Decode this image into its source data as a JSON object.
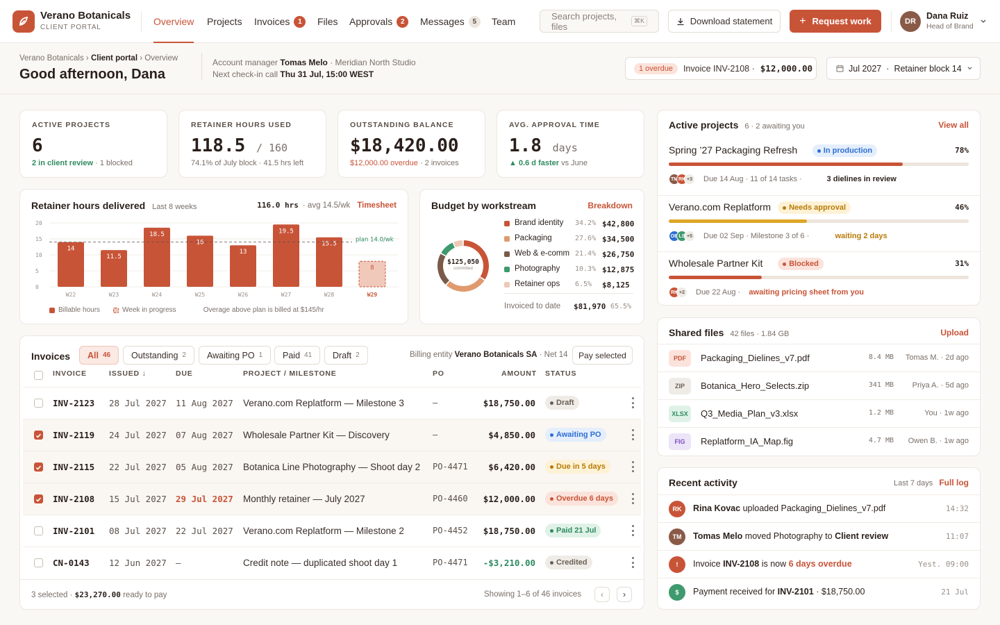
{
  "brand": {
    "name": "Verano Botanicals",
    "subtitle": "CLIENT PORTAL"
  },
  "nav": [
    {
      "label": "Overview"
    },
    {
      "label": "Projects"
    },
    {
      "label": "Invoices",
      "badge": "1"
    },
    {
      "label": "Files"
    },
    {
      "label": "Approvals",
      "badge": "2"
    },
    {
      "label": "Messages",
      "badge": "5"
    },
    {
      "label": "Team"
    }
  ],
  "search": {
    "placeholder": "Search projects, files",
    "shortcut": "⌘K"
  },
  "actions": {
    "download": "Download statement",
    "request": "Request work"
  },
  "user": {
    "initials": "DR",
    "name": "Dana Ruiz",
    "role": "Head of Brand"
  },
  "header": {
    "breadcrumb": [
      "Verano Botanicals",
      "Client portal",
      "Overview"
    ],
    "greeting": "Good afternoon, Dana",
    "account_label": "Account manager",
    "account_manager": "Tomas Melo",
    "studio": "· Meridian North Studio",
    "checkin_label": "Next check-in call",
    "checkin": "Thu 31 Jul, 15:00 WEST",
    "overdue_badge": "1 overdue",
    "overdue_invoice": "Invoice INV-2108 ·",
    "overdue_amount": "$12,000.00",
    "period": "Jul 2027",
    "block": "Retainer block 14"
  },
  "stats": [
    {
      "label": "ACTIVE PROJECTS",
      "value": "6",
      "sub_hl": "2 in client review",
      "sub": "· 1 blocked"
    },
    {
      "label": "RETAINER HOURS USED",
      "value": "118.5",
      "value_suffix": "/ 160",
      "sub": "74.1% of July block · 41.5 hrs left"
    },
    {
      "label": "OUTSTANDING BALANCE",
      "value": "$18,420.00",
      "sub_hl": "$12,000.00 overdue",
      "sub": "· 2 invoices"
    },
    {
      "label": "AVG. APPROVAL TIME",
      "value": "1.8",
      "value_suffix": "days",
      "sub_hl": "▲ 0.6 d faster",
      "sub": "vs June"
    }
  ],
  "hours_chart": {
    "title": "Retainer hours delivered",
    "range": "Last 8 weeks",
    "total": "116.0 hrs",
    "avg": "· avg 14.5/wk",
    "link": "Timesheet",
    "legend_billable": "Billable hours",
    "legend_progress": "Week in progress",
    "note": "Overage above plan is billed at $145/hr",
    "plan_label": "plan 14.0/wk"
  },
  "chart_data": [
    {
      "type": "bar",
      "title": "Retainer hours delivered",
      "categories": [
        "W22",
        "W23",
        "W24",
        "W25",
        "W26",
        "W27",
        "W28",
        "W29"
      ],
      "values": [
        14.0,
        11.5,
        18.5,
        16.0,
        13.0,
        19.5,
        15.5,
        8.0
      ],
      "ylim": [
        0,
        20
      ],
      "yticks": [
        0,
        5,
        10,
        15,
        20
      ],
      "plan": 14.0,
      "in_progress": "W29",
      "grid": true
    },
    {
      "type": "pie",
      "title": "Budget by workstream",
      "center_label": "$125,050",
      "center_sub": "committed",
      "slices": [
        {
          "name": "Brand identity",
          "pct": "34.2%",
          "amount": "$42,800",
          "value": 34.2,
          "color": "#c85438"
        },
        {
          "name": "Packaging",
          "pct": "27.6%",
          "amount": "$34,500",
          "value": 27.6,
          "color": "#e09a6e"
        },
        {
          "name": "Web & e-comm",
          "pct": "21.4%",
          "amount": "$26,750",
          "value": 21.4,
          "color": "#7a5a48"
        },
        {
          "name": "Photography",
          "pct": "10.3%",
          "amount": "$12,875",
          "value": 10.3,
          "color": "#3f9a6e"
        },
        {
          "name": "Retainer ops",
          "pct": "6.5%",
          "amount": "$8,125",
          "value": 6.5,
          "color": "#ecc9b6"
        }
      ]
    }
  ],
  "budget": {
    "title": "Budget by workstream",
    "link": "Breakdown",
    "invoiced_label": "Invoiced to date",
    "invoiced": "$81,970",
    "invoiced_pct": "65.5%"
  },
  "invoices": {
    "title": "Invoices",
    "tabs": [
      {
        "label": "All",
        "count": "46"
      },
      {
        "label": "Outstanding",
        "count": "2"
      },
      {
        "label": "Awaiting PO",
        "count": "1"
      },
      {
        "label": "Paid",
        "count": "41"
      },
      {
        "label": "Draft",
        "count": "2"
      }
    ],
    "billing_label": "Billing entity",
    "billing_entity": "Verano Botanicals SA",
    "terms": "· Net 14",
    "pay_button": "Pay selected",
    "columns": [
      "INVOICE",
      "ISSUED ↓",
      "DUE",
      "PROJECT / MILESTONE",
      "PO",
      "AMOUNT",
      "STATUS"
    ],
    "rows": [
      {
        "id": "INV-2123",
        "issued": "28 Jul 2027",
        "due": "11 Aug 2027",
        "project": "Verano.com Replatform — Milestone 3",
        "po": "—",
        "amount": "$18,750.00",
        "status": "Draft",
        "checked": false
      },
      {
        "id": "INV-2119",
        "issued": "24 Jul 2027",
        "due": "07 Aug 2027",
        "project": "Wholesale Partner Kit — Discovery",
        "po": "—",
        "amount": "$4,850.00",
        "status": "Awaiting PO",
        "checked": true
      },
      {
        "id": "INV-2115",
        "issued": "22 Jul 2027",
        "due": "05 Aug 2027",
        "project": "Botanica Line Photography — Shoot day 2",
        "po": "PO-4471",
        "amount": "$6,420.00",
        "status": "Due in 5 days",
        "checked": true
      },
      {
        "id": "INV-2108",
        "issued": "15 Jul 2027",
        "due": "29 Jul 2027",
        "project": "Monthly retainer — July 2027",
        "po": "PO-4460",
        "amount": "$12,000.00",
        "status": "Overdue 6 days",
        "checked": true
      },
      {
        "id": "INV-2101",
        "issued": "08 Jul 2027",
        "due": "22 Jul 2027",
        "project": "Verano.com Replatform — Milestone 2",
        "po": "PO-4452",
        "amount": "$18,750.00",
        "status": "Paid 21 Jul",
        "checked": false
      },
      {
        "id": "CN-0143",
        "issued": "12 Jun 2027",
        "due": "—",
        "project": "Credit note — duplicated shoot day 1",
        "po": "PO-4471",
        "amount": "-$3,210.00",
        "status": "Credited",
        "checked": false
      }
    ],
    "footer_selected": "3 selected ·",
    "footer_amount": "$23,270.00",
    "footer_suffix": "ready to pay",
    "showing": "Showing 1–6 of 46 invoices"
  },
  "projects": {
    "title": "Active projects",
    "meta": "6 · 2 awaiting you",
    "link": "View all",
    "items": [
      {
        "name": "Spring ’27 Packaging Refresh",
        "status": "In production",
        "pct": "78%",
        "progress": 0.78,
        "avatars": [
          "TM",
          "RK"
        ],
        "more": "+3",
        "due": "Due 14 Aug · 11 of 14 tasks ·",
        "note": "3 dielines in review"
      },
      {
        "name": "Verano.com Replatform",
        "status": "Needs approval",
        "pct": "46%",
        "progress": 0.46,
        "avatars": [
          "OB",
          "LS"
        ],
        "more": "+5",
        "due": "Due 02 Sep · Milestone 3 of 6 ·",
        "note": "waiting 2 days"
      },
      {
        "name": "Wholesale Partner Kit",
        "status": "Blocked",
        "pct": "31%",
        "progress": 0.31,
        "avatars": [
          "RK"
        ],
        "more": "+2",
        "due": "Due 22 Aug ·",
        "note": "awaiting pricing sheet from you"
      }
    ]
  },
  "files": {
    "title": "Shared files",
    "meta": "42 files · 1.84 GB",
    "link": "Upload",
    "items": [
      {
        "type": "PDF",
        "name": "Packaging_Dielines_v7.pdf",
        "size": "8.4 MB",
        "who": "Tomas M. · 2d ago"
      },
      {
        "type": "ZIP",
        "name": "Botanica_Hero_Selects.zip",
        "size": "341 MB",
        "who": "Priya A. · 5d ago"
      },
      {
        "type": "XLSX",
        "name": "Q3_Media_Plan_v3.xlsx",
        "size": "1.2 MB",
        "who": "You · 1w ago"
      },
      {
        "type": "FIG",
        "name": "Replatform_IA_Map.fig",
        "size": "4.7 MB",
        "who": "Owen B. · 1w ago"
      }
    ]
  },
  "activity": {
    "title": "Recent activity",
    "range": "Last 7 days",
    "link": "Full log",
    "items": [
      {
        "icon": "RK",
        "who": "Rina Kovac",
        "text": "uploaded Packaging_Dielines_v7.pdf",
        "time": "14:32"
      },
      {
        "icon": "TM",
        "who": "Tomas Melo",
        "text": "moved Photography to",
        "hl": "Client review",
        "time": "11:07"
      },
      {
        "icon": "!",
        "pre": "Invoice",
        "who": "INV-2108",
        "text": "is now",
        "hl": "6 days overdue",
        "time": "Yest. 09:00"
      },
      {
        "icon": "$",
        "pre": "Payment received for",
        "who": "INV-2101",
        "text": "· $18,750.00",
        "time": "21 Jul"
      }
    ]
  },
  "colors": {
    "accent": "#c85438",
    "green": "#2e8a5f",
    "amber": "#c88a12",
    "blue": "#2f6fd1"
  }
}
